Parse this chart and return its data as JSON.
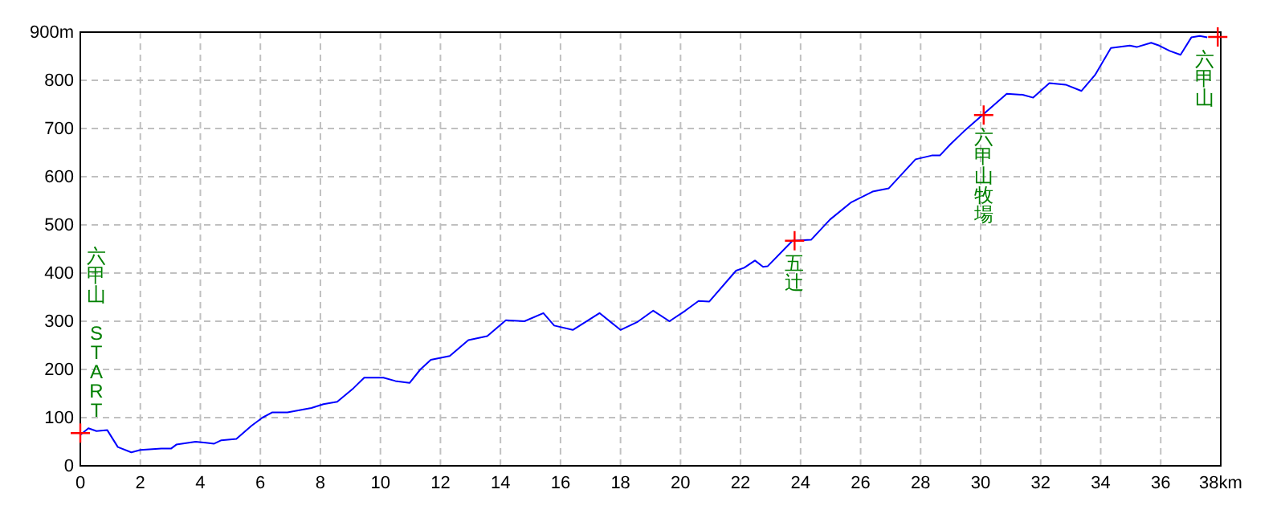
{
  "chart_data": {
    "type": "line",
    "xlim": [
      0,
      38
    ],
    "ylim": [
      0,
      900
    ],
    "xticks": [
      0,
      2,
      4,
      6,
      8,
      10,
      12,
      14,
      16,
      18,
      20,
      22,
      24,
      26,
      28,
      30,
      32,
      34,
      36,
      {
        "value": 38,
        "label": "38km"
      }
    ],
    "yticks": [
      0,
      100,
      200,
      300,
      400,
      500,
      600,
      700,
      800,
      {
        "value": 900,
        "label": "900m"
      }
    ],
    "grid": true,
    "line_style": "solid",
    "series": [
      {
        "color": "#0000ff",
        "x": [
          0,
          0.27,
          0.54,
          0.9,
          1.25,
          1.7,
          2.0,
          2.7,
          3.03,
          3.2,
          3.84,
          4.46,
          4.7,
          5.2,
          5.7,
          6.07,
          6.4,
          6.9,
          7.7,
          8.1,
          8.56,
          9.1,
          9.46,
          10.1,
          10.5,
          10.97,
          11.33,
          11.68,
          12.31,
          12.93,
          13.56,
          14.18,
          14.8,
          15.43,
          15.79,
          16.41,
          17.3,
          18.0,
          18.55,
          19.09,
          19.63,
          20.16,
          20.6,
          20.96,
          21.85,
          22.12,
          22.48,
          22.75,
          22.9,
          23.73,
          24.35,
          24.98,
          25.69,
          26.4,
          26.94,
          27.83,
          28.37,
          28.64,
          28.99,
          29.44,
          30.06,
          30.87,
          31.4,
          31.75,
          32.29,
          32.83,
          33.36,
          33.81,
          34.34,
          34.97,
          35.2,
          35.68,
          35.95,
          36.3,
          36.66,
          37.02,
          37.3,
          37.55
        ],
        "values": [
          64,
          78,
          72,
          74,
          39,
          28,
          33,
          36,
          36,
          44,
          50,
          46,
          53,
          56,
          83,
          100,
          111,
          111,
          120,
          128,
          133,
          161,
          183,
          183,
          176,
          172,
          200,
          220,
          228,
          261,
          269,
          302,
          300,
          317,
          291,
          282,
          317,
          282,
          298,
          322,
          300,
          322,
          342,
          341,
          405,
          411,
          426,
          413,
          414,
          467,
          469,
          511,
          547,
          569,
          576,
          636,
          644,
          644,
          667,
          694,
          728,
          772,
          770,
          764,
          794,
          791,
          778,
          811,
          867,
          872,
          869,
          878,
          872,
          861,
          853,
          889,
          892,
          889
        ]
      },
      {
        "type": "scatter",
        "color": "#ff0000",
        "marker": "cross",
        "x": [
          0,
          23.8,
          30.1,
          37.9
        ],
        "values": [
          68,
          467,
          728,
          890
        ]
      }
    ],
    "annotations": [
      {
        "text": "六甲山 START",
        "x": 0,
        "y": 68
      },
      {
        "text": "五辻",
        "x": 23.8,
        "y": 467
      },
      {
        "text": "六甲山牧場",
        "x": 30.1,
        "y": 728
      },
      {
        "text": "六甲山",
        "x": 37.9,
        "y": 890
      }
    ]
  }
}
